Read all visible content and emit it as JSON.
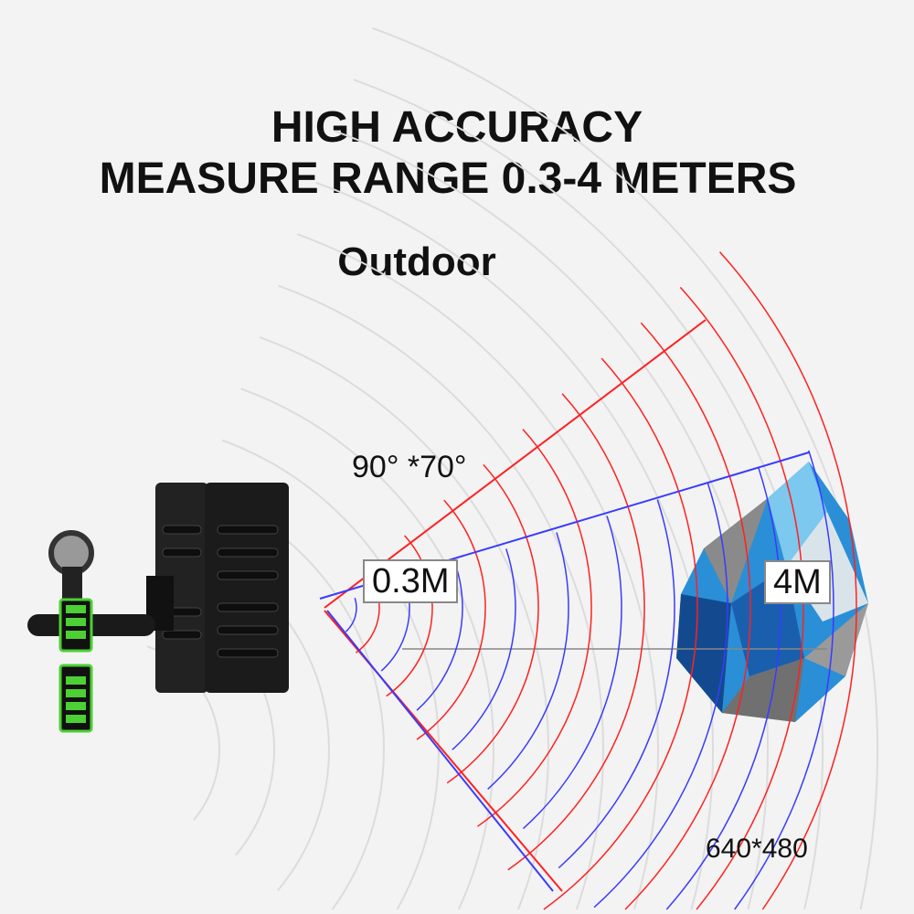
{
  "headline": {
    "line1": "HIGH ACCURACY",
    "line2": "MEASURE RANGE 0.3-4 METERS",
    "mode": "Outdoor"
  },
  "diagram": {
    "fov_label": "90°  *70°",
    "near_tag": "0.3M",
    "far_tag": "4M",
    "resolution": "640*480",
    "colors": {
      "horizontal_fov": "#ff2020",
      "vertical_fov": "#3a3aff",
      "object": "#2a8fd6",
      "battery_indicator": "#4cd034"
    }
  }
}
